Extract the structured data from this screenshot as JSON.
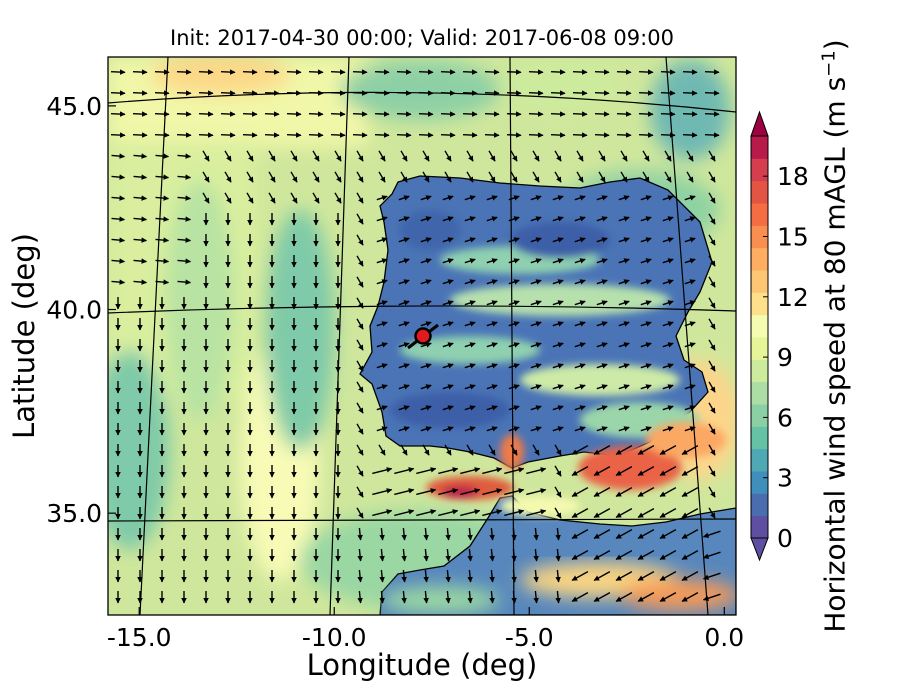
{
  "title": "Init: 2017-04-30 00:00; Valid: 2017-06-08 09:00",
  "xlabel": "Longitude (deg)",
  "ylabel": "Latitude (deg)",
  "colorbar": {
    "label_main": "Horizontal wind speed at 80 mAGL (m s",
    "label_exp": "−1",
    "label_tail": ")",
    "ticks": [
      "0",
      "3",
      "6",
      "9",
      "12",
      "15",
      "18"
    ],
    "tick_values": [
      0,
      3,
      6,
      9,
      12,
      15,
      18
    ],
    "range": [
      0,
      20
    ],
    "colors": [
      "#5e4fa2",
      "#4a6db0",
      "#3f8ebb",
      "#4ea9b4",
      "#66c2a5",
      "#8bd0a4",
      "#abdda4",
      "#cdeb9d",
      "#e6f598",
      "#f5fbb0",
      "#fee08b",
      "#fdc672",
      "#fdae61",
      "#f88e4f",
      "#f46d43",
      "#e35543",
      "#d53e4f",
      "#b81a4a",
      "#9e0142"
    ]
  },
  "map": {
    "xticks": [
      "-15.0",
      "-10.0",
      "-5.0",
      "0.0"
    ],
    "xtick_values": [
      -15,
      -10,
      -5,
      0
    ],
    "yticks": [
      "35.0",
      "40.0",
      "45.0"
    ],
    "ytick_values": [
      35,
      40,
      45
    ],
    "lon_range": [
      -15.8,
      0.3
    ],
    "lat_range": [
      32.5,
      46.2
    ],
    "site_marker_color": "#e31a1c",
    "vector_color": "#000000",
    "ocean_color": "#cfe79c",
    "land_color": "#3f74b8"
  }
}
